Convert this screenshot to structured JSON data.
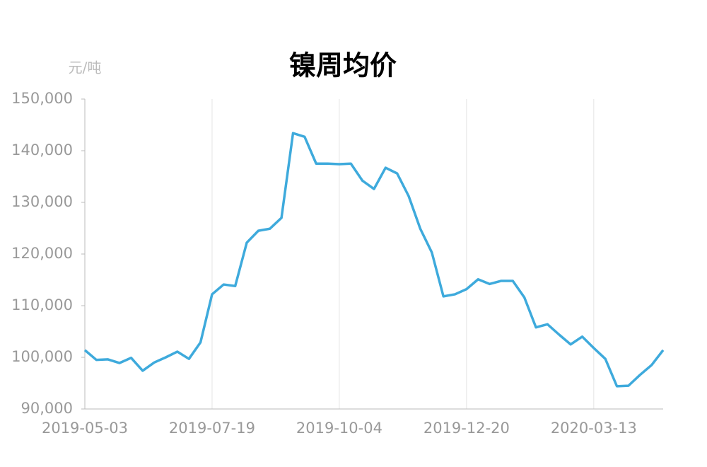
{
  "chart_data": {
    "type": "line",
    "title": "镍周均价",
    "y_unit": "元/吨",
    "categories": [
      "2019-05-03",
      null,
      null,
      null,
      null,
      null,
      null,
      null,
      null,
      null,
      null,
      "2019-07-19",
      null,
      null,
      null,
      null,
      null,
      null,
      null,
      null,
      null,
      null,
      "2019-10-04",
      null,
      null,
      null,
      null,
      null,
      null,
      null,
      null,
      null,
      null,
      "2019-12-20",
      null,
      null,
      null,
      null,
      null,
      null,
      null,
      null,
      null,
      null,
      "2020-03-13",
      null,
      null,
      null,
      null,
      null,
      null
    ],
    "series": [
      {
        "name": "镍周均价",
        "color": "#3eaadc",
        "values": [
          101400,
          99500,
          99600,
          98900,
          99900,
          97400,
          99000,
          100000,
          101100,
          99700,
          102900,
          112200,
          114100,
          113800,
          122200,
          124500,
          124900,
          127000,
          143400,
          142700,
          137500,
          137500,
          137400,
          137500,
          134200,
          132600,
          136700,
          135600,
          131200,
          124900,
          120300,
          111800,
          112200,
          113200,
          115100,
          114200,
          114800,
          114800,
          111600,
          105800,
          106400,
          104400,
          102500,
          104000,
          101800,
          99700,
          94400,
          94500,
          96600,
          98500,
          101400
        ]
      }
    ],
    "ylim": [
      90000,
      150000
    ],
    "yticks": [
      {
        "value": 90000,
        "label": "90,000"
      },
      {
        "value": 100000,
        "label": "100,000"
      },
      {
        "value": 110000,
        "label": "110,000"
      },
      {
        "value": 120000,
        "label": "120,000"
      },
      {
        "value": 130000,
        "label": "130,000"
      },
      {
        "value": 140000,
        "label": "140,000"
      },
      {
        "value": 150000,
        "label": "150,000"
      }
    ],
    "grid": "x"
  }
}
